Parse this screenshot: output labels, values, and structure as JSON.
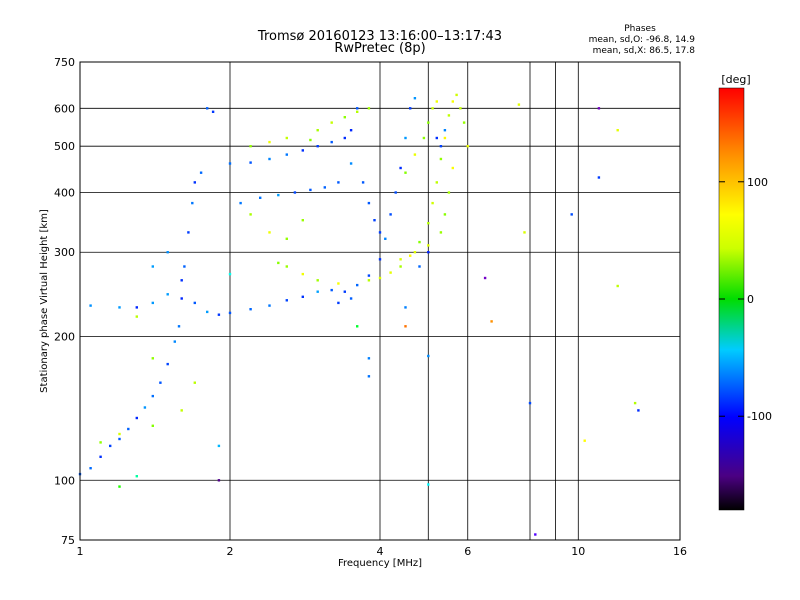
{
  "chart_data": {
    "type": "scatter",
    "title": "Tromsø 20160123 13:16:00–13:17:43",
    "subtitle": "RwPretec (8p)",
    "xlabel": "Frequency [MHz]",
    "ylabel": "Stationary phase Virtual Height [km]",
    "x_scale": "log",
    "y_scale": "log",
    "xlim": [
      1,
      16
    ],
    "ylim": [
      75,
      750
    ],
    "x_ticks": [
      {
        "value": 1,
        "label": "1"
      },
      {
        "value": 2,
        "label": "2"
      },
      {
        "value": 4,
        "label": "4"
      },
      {
        "value": 6,
        "label": "6"
      },
      {
        "value": 10,
        "label": "10"
      },
      {
        "value": 16,
        "label": "16"
      }
    ],
    "y_ticks": [
      {
        "value": 75,
        "label": "75"
      },
      {
        "value": 100,
        "label": "100"
      },
      {
        "value": 200,
        "label": "200"
      },
      {
        "value": 300,
        "label": "300"
      },
      {
        "value": 400,
        "label": "400"
      },
      {
        "value": 500,
        "label": "500"
      },
      {
        "value": 600,
        "label": "600"
      },
      {
        "value": 750,
        "label": "750"
      }
    ],
    "x_gridlines": [
      1,
      2,
      4,
      5,
      6,
      8,
      9,
      10,
      16
    ],
    "y_gridlines": [
      75,
      100,
      200,
      300,
      400,
      500,
      600,
      750
    ],
    "grid": true,
    "phases": {
      "title": "Phases",
      "line_o": "mean, sd,O: -96.8, 14.9",
      "line_x": "mean, sd,X: 86.5, 17.8"
    },
    "colorbar": {
      "label": "[deg]",
      "range": [
        -180,
        180
      ],
      "ticks": [
        {
          "value": 100,
          "label": "100"
        },
        {
          "value": 0,
          "label": "0"
        },
        {
          "value": -100,
          "label": "-100"
        }
      ]
    },
    "series": [
      {
        "mode": "O",
        "phase_mean": -96.8,
        "points": [
          [
            1.0,
            103
          ],
          [
            1.05,
            106
          ],
          [
            1.1,
            112
          ],
          [
            1.15,
            118
          ],
          [
            1.2,
            122
          ],
          [
            1.25,
            128
          ],
          [
            1.3,
            135
          ],
          [
            1.35,
            142
          ],
          [
            1.4,
            150
          ],
          [
            1.45,
            160
          ],
          [
            1.5,
            175
          ],
          [
            1.55,
            195
          ],
          [
            1.58,
            210
          ],
          [
            1.6,
            240
          ],
          [
            1.62,
            280
          ],
          [
            1.65,
            330
          ],
          [
            1.68,
            380
          ],
          [
            1.7,
            420
          ],
          [
            1.75,
            440
          ],
          [
            1.8,
            600
          ],
          [
            1.85,
            590
          ],
          [
            1.3,
            230
          ],
          [
            1.4,
            235
          ],
          [
            1.5,
            245
          ],
          [
            1.6,
            262
          ],
          [
            1.7,
            235
          ],
          [
            1.8,
            225
          ],
          [
            1.9,
            222
          ],
          [
            2.0,
            224
          ],
          [
            2.2,
            228
          ],
          [
            2.4,
            232
          ],
          [
            2.6,
            238
          ],
          [
            2.8,
            242
          ],
          [
            3.0,
            248
          ],
          [
            3.2,
            250
          ],
          [
            3.4,
            248
          ],
          [
            3.6,
            256
          ],
          [
            3.8,
            268
          ],
          [
            4.0,
            290
          ],
          [
            4.1,
            320
          ],
          [
            4.2,
            360
          ],
          [
            4.3,
            400
          ],
          [
            4.4,
            450
          ],
          [
            4.5,
            520
          ],
          [
            4.6,
            600
          ],
          [
            4.7,
            630
          ],
          [
            3.5,
            240
          ],
          [
            3.3,
            235
          ],
          [
            2.0,
            460
          ],
          [
            2.2,
            462
          ],
          [
            2.4,
            470
          ],
          [
            2.6,
            480
          ],
          [
            2.8,
            490
          ],
          [
            3.0,
            500
          ],
          [
            3.2,
            510
          ],
          [
            3.4,
            520
          ],
          [
            3.5,
            540
          ],
          [
            3.6,
            600
          ],
          [
            2.1,
            380
          ],
          [
            2.3,
            390
          ],
          [
            2.5,
            395
          ],
          [
            2.7,
            400
          ],
          [
            2.9,
            405
          ],
          [
            3.1,
            410
          ],
          [
            3.3,
            420
          ],
          [
            3.5,
            460
          ],
          [
            3.7,
            420
          ],
          [
            3.8,
            380
          ],
          [
            3.9,
            350
          ],
          [
            4.0,
            330
          ],
          [
            4.5,
            230
          ],
          [
            5.2,
            520
          ],
          [
            5.3,
            500
          ],
          [
            5.4,
            540
          ],
          [
            1.5,
            300
          ],
          [
            1.4,
            280
          ],
          [
            1.2,
            230
          ],
          [
            1.05,
            232
          ],
          [
            3.8,
            180
          ],
          [
            3.8,
            165
          ],
          [
            4.8,
            280
          ],
          [
            5.0,
            300
          ],
          [
            8.0,
            145
          ],
          [
            9.7,
            360
          ],
          [
            11.0,
            430
          ]
        ]
      },
      {
        "mode": "X",
        "phase_mean": 86.5,
        "points": [
          [
            3.8,
            262
          ],
          [
            4.0,
            265
          ],
          [
            4.2,
            272
          ],
          [
            4.4,
            280
          ],
          [
            4.6,
            295
          ],
          [
            4.8,
            315
          ],
          [
            5.0,
            345
          ],
          [
            5.1,
            380
          ],
          [
            5.2,
            420
          ],
          [
            5.3,
            470
          ],
          [
            5.4,
            520
          ],
          [
            5.5,
            580
          ],
          [
            5.6,
            620
          ],
          [
            5.7,
            640
          ],
          [
            5.8,
            600
          ],
          [
            5.9,
            560
          ],
          [
            6.0,
            500
          ],
          [
            5.6,
            450
          ],
          [
            5.5,
            400
          ],
          [
            5.4,
            360
          ],
          [
            5.3,
            330
          ],
          [
            5.0,
            310
          ],
          [
            4.7,
            300
          ],
          [
            4.4,
            290
          ],
          [
            3.3,
            258
          ],
          [
            3.0,
            262
          ],
          [
            2.8,
            270
          ],
          [
            2.6,
            280
          ],
          [
            2.5,
            285
          ],
          [
            4.9,
            520
          ],
          [
            5.0,
            560
          ],
          [
            5.1,
            600
          ],
          [
            5.2,
            620
          ],
          [
            2.4,
            510
          ],
          [
            2.2,
            500
          ],
          [
            2.6,
            520
          ],
          [
            2.9,
            515
          ],
          [
            3.0,
            540
          ],
          [
            3.2,
            560
          ],
          [
            3.4,
            575
          ],
          [
            3.6,
            590
          ],
          [
            3.8,
            600
          ],
          [
            2.2,
            360
          ],
          [
            2.4,
            330
          ],
          [
            2.6,
            320
          ],
          [
            2.8,
            350
          ],
          [
            1.4,
            130
          ],
          [
            1.2,
            125
          ],
          [
            1.1,
            120
          ],
          [
            1.3,
            220
          ],
          [
            1.4,
            180
          ],
          [
            1.6,
            140
          ],
          [
            1.7,
            160
          ],
          [
            4.5,
            440
          ],
          [
            4.7,
            480
          ],
          [
            12.0,
            255
          ],
          [
            12.0,
            540
          ],
          [
            13.0,
            145
          ],
          [
            10.3,
            121
          ],
          [
            7.6,
            611
          ],
          [
            7.8,
            330
          ]
        ]
      },
      {
        "mode": "noise",
        "points": [
          [
            5.0,
            182
          ],
          [
            5.0,
            98
          ],
          [
            6.5,
            265
          ],
          [
            6.7,
            215
          ],
          [
            8.2,
            77
          ],
          [
            11.0,
            600
          ],
          [
            13.2,
            140
          ],
          [
            1.9,
            118
          ],
          [
            1.9,
            100
          ],
          [
            1.2,
            97
          ],
          [
            1.3,
            102
          ],
          [
            2.0,
            270
          ],
          [
            3.6,
            210
          ],
          [
            4.5,
            210
          ]
        ]
      }
    ]
  }
}
